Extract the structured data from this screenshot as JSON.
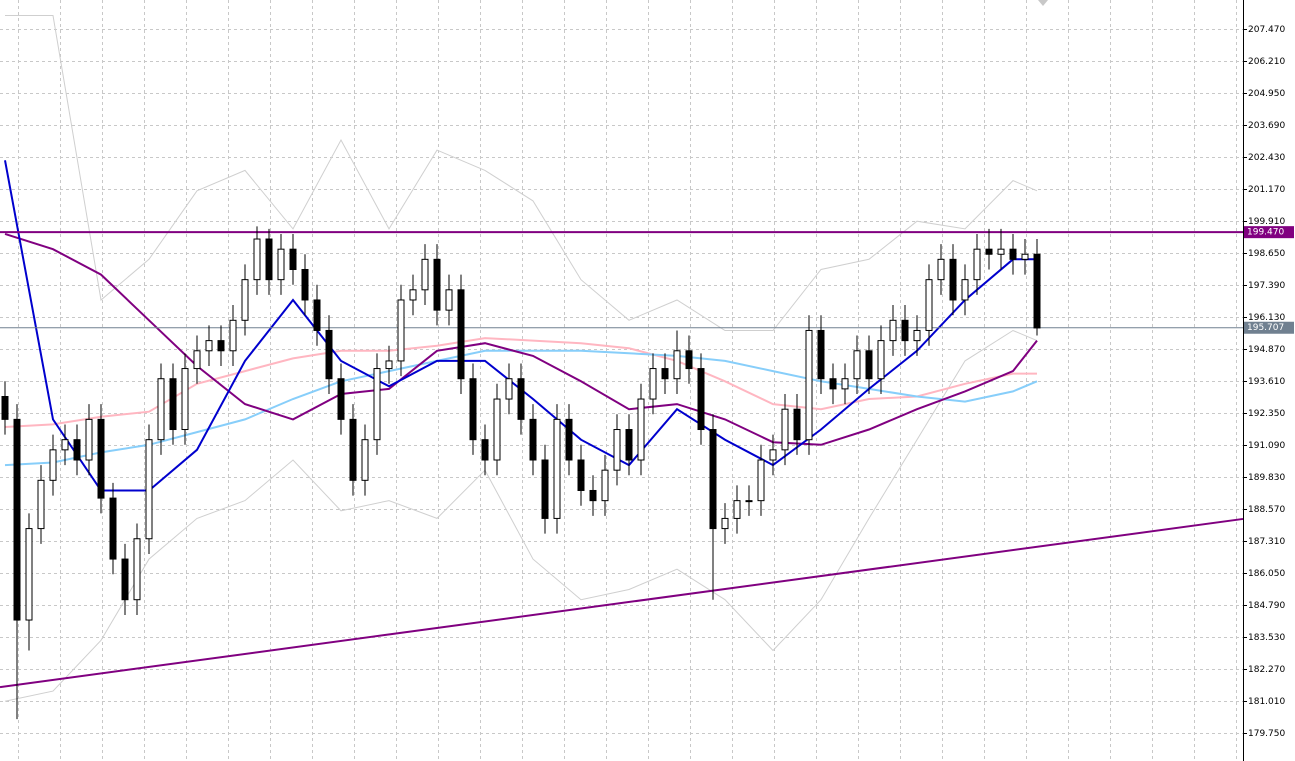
{
  "chart_data": {
    "type": "candlestick",
    "ylim": [
      178.65,
      208.61
    ],
    "yticks": [
      {
        "value": 207.47,
        "label": "207.470"
      },
      {
        "value": 206.21,
        "label": "206.210"
      },
      {
        "value": 204.95,
        "label": "204.950"
      },
      {
        "value": 203.69,
        "label": "203.690"
      },
      {
        "value": 202.43,
        "label": "202.430"
      },
      {
        "value": 201.17,
        "label": "201.170"
      },
      {
        "value": 199.91,
        "label": "199.910"
      },
      {
        "value": 198.65,
        "label": "198.650"
      },
      {
        "value": 197.39,
        "label": "197.390"
      },
      {
        "value": 196.13,
        "label": "196.130"
      },
      {
        "value": 194.87,
        "label": "194.870"
      },
      {
        "value": 193.61,
        "label": "193.610"
      },
      {
        "value": 192.35,
        "label": "192.350"
      },
      {
        "value": 191.09,
        "label": "191.090"
      },
      {
        "value": 189.83,
        "label": "189.830"
      },
      {
        "value": 188.57,
        "label": "188.570"
      },
      {
        "value": 187.31,
        "label": "187.310"
      },
      {
        "value": 186.05,
        "label": "186.050"
      },
      {
        "value": 184.79,
        "label": "184.790"
      },
      {
        "value": 183.53,
        "label": "183.530"
      },
      {
        "value": 182.27,
        "label": "182.270"
      },
      {
        "value": 181.01,
        "label": "181.010"
      },
      {
        "value": 179.75,
        "label": "179.750"
      }
    ],
    "grid": true,
    "candles": {
      "open": [
        193.0,
        192.1,
        184.2,
        187.8,
        189.7,
        190.9,
        191.3,
        190.5,
        192.1,
        189.0,
        186.6,
        185.0,
        187.4,
        191.3,
        193.7,
        191.7,
        194.1,
        194.8,
        195.2,
        194.8,
        196.0,
        197.6,
        199.2,
        197.6,
        198.8,
        198.0,
        196.8,
        195.6,
        193.7,
        192.1,
        189.7,
        191.3,
        194.1,
        194.4,
        196.8,
        197.2,
        198.4,
        196.4,
        197.2,
        193.7,
        191.3,
        190.5,
        192.9,
        193.7,
        192.1,
        190.5,
        188.2,
        192.1,
        190.5,
        189.3,
        188.9,
        190.1,
        191.7,
        190.5,
        192.9,
        194.1,
        193.7,
        194.8,
        194.1,
        191.7,
        187.8,
        188.2,
        188.9,
        188.9,
        190.5,
        190.9,
        192.5,
        191.3,
        195.6,
        193.7,
        193.3,
        193.7,
        194.8,
        193.7,
        195.2,
        196.0,
        195.2,
        195.6,
        197.6,
        198.4,
        196.8,
        197.6,
        198.8,
        198.6,
        198.8,
        198.4,
        198.6
      ],
      "high": [
        193.6,
        192.7,
        188.4,
        190.3,
        191.5,
        191.9,
        191.9,
        192.7,
        192.7,
        189.6,
        187.2,
        188.0,
        191.9,
        194.3,
        194.3,
        194.7,
        195.4,
        195.8,
        195.8,
        196.6,
        198.2,
        199.7,
        199.6,
        199.4,
        199.4,
        198.6,
        197.4,
        196.2,
        194.3,
        192.7,
        191.9,
        194.7,
        195.0,
        197.4,
        197.8,
        199.0,
        199.0,
        197.8,
        197.8,
        194.3,
        191.9,
        193.5,
        194.3,
        194.3,
        192.7,
        191.1,
        192.7,
        192.7,
        191.1,
        189.9,
        190.7,
        192.3,
        192.3,
        193.5,
        194.7,
        194.7,
        195.6,
        195.4,
        194.7,
        192.3,
        188.8,
        189.5,
        189.5,
        191.1,
        191.5,
        193.1,
        193.1,
        196.2,
        196.2,
        194.3,
        194.3,
        195.4,
        195.4,
        195.8,
        196.6,
        196.6,
        196.2,
        198.2,
        199.0,
        199.0,
        198.2,
        199.4,
        199.6,
        199.6,
        199.4,
        199.2,
        199.2
      ],
      "low": [
        191.5,
        180.3,
        183.0,
        187.2,
        189.1,
        190.3,
        189.9,
        189.9,
        188.4,
        186.0,
        184.4,
        184.4,
        186.8,
        190.7,
        191.1,
        191.1,
        193.5,
        194.2,
        194.2,
        194.2,
        195.4,
        197.0,
        197.0,
        197.0,
        197.4,
        196.2,
        195.0,
        193.1,
        191.5,
        189.1,
        189.1,
        190.7,
        193.5,
        193.8,
        196.2,
        196.6,
        195.8,
        195.8,
        193.1,
        190.7,
        189.9,
        189.9,
        192.3,
        191.5,
        189.9,
        187.6,
        187.6,
        189.9,
        188.7,
        188.3,
        188.3,
        189.5,
        189.9,
        189.9,
        192.3,
        193.1,
        193.1,
        193.5,
        191.1,
        185.0,
        187.2,
        187.6,
        188.3,
        188.3,
        189.9,
        190.3,
        190.7,
        190.7,
        193.1,
        192.7,
        192.7,
        193.1,
        193.1,
        193.1,
        194.6,
        194.6,
        194.6,
        195.0,
        197.0,
        196.2,
        196.2,
        197.0,
        198.0,
        198.0,
        197.8,
        197.8,
        195.4
      ],
      "close": [
        192.1,
        184.2,
        187.8,
        189.7,
        190.9,
        191.3,
        190.5,
        192.1,
        189.0,
        186.6,
        185.0,
        187.4,
        191.3,
        193.7,
        191.7,
        194.1,
        194.8,
        195.2,
        194.8,
        196.0,
        197.6,
        199.2,
        197.6,
        198.8,
        198.0,
        196.8,
        195.6,
        193.7,
        192.1,
        189.7,
        191.3,
        194.1,
        194.4,
        196.8,
        197.2,
        198.4,
        196.4,
        197.2,
        193.7,
        191.3,
        190.5,
        192.9,
        193.7,
        192.1,
        190.5,
        188.2,
        192.1,
        190.5,
        189.3,
        188.9,
        190.1,
        191.7,
        190.5,
        192.9,
        194.1,
        193.7,
        194.8,
        194.1,
        191.7,
        187.8,
        188.2,
        188.9,
        188.9,
        190.5,
        190.9,
        192.5,
        191.3,
        195.6,
        193.7,
        193.3,
        193.7,
        194.8,
        193.7,
        195.2,
        196.0,
        195.2,
        195.6,
        197.6,
        198.4,
        196.8,
        197.6,
        198.8,
        198.6,
        198.8,
        198.4,
        198.6,
        195.7
      ]
    },
    "overlays": {
      "x": [
        0,
        4,
        8,
        12,
        16,
        20,
        24,
        28,
        32,
        36,
        40,
        44,
        48,
        52,
        56,
        60,
        64,
        68,
        72,
        76,
        80,
        84,
        86
      ],
      "series": [
        {
          "color": "#cfcfcf",
          "values": [
            208.0,
            208.0,
            196.8,
            198.4,
            201.1,
            201.9,
            199.6,
            203.1,
            199.6,
            202.7,
            201.9,
            200.7,
            197.6,
            196.0,
            196.8,
            195.6,
            195.6,
            198.0,
            198.4,
            199.9,
            199.6,
            201.5,
            201.1
          ]
        },
        {
          "color": "#cfcfcf",
          "values": [
            181.0,
            181.4,
            183.4,
            186.6,
            188.2,
            188.9,
            190.5,
            188.5,
            188.9,
            188.2,
            190.1,
            186.6,
            185.0,
            185.4,
            186.2,
            185.0,
            183.0,
            185.0,
            188.2,
            191.3,
            194.4,
            195.6,
            195.2
          ]
        },
        {
          "color": "#ffb6c1",
          "values": [
            191.8,
            191.9,
            192.2,
            192.4,
            193.5,
            194.0,
            194.5,
            194.8,
            194.8,
            195.0,
            195.3,
            195.2,
            195.1,
            194.9,
            194.4,
            193.6,
            192.7,
            192.5,
            192.9,
            193.0,
            193.5,
            193.9,
            193.9
          ]
        },
        {
          "color": "#87cefa",
          "values": [
            190.3,
            190.4,
            190.8,
            191.1,
            191.6,
            192.1,
            192.9,
            193.6,
            194.0,
            194.4,
            194.8,
            194.8,
            194.8,
            194.7,
            194.6,
            194.4,
            194.0,
            193.6,
            193.3,
            193.0,
            192.8,
            193.2,
            193.6
          ]
        },
        {
          "color": "#800080",
          "values": [
            199.4,
            198.8,
            197.8,
            196.0,
            194.2,
            192.7,
            192.1,
            193.1,
            193.3,
            194.8,
            195.1,
            194.6,
            193.6,
            192.5,
            192.7,
            192.1,
            191.2,
            191.1,
            191.7,
            192.5,
            193.2,
            194.0,
            195.2
          ]
        },
        {
          "color": "#0000cd",
          "values": [
            202.3,
            192.1,
            189.3,
            189.3,
            190.9,
            194.4,
            196.8,
            194.4,
            193.4,
            194.4,
            194.4,
            192.9,
            191.3,
            190.3,
            192.5,
            191.3,
            190.3,
            191.7,
            193.3,
            194.8,
            196.8,
            198.4,
            198.4
          ]
        }
      ]
    },
    "hline": {
      "value": 199.47,
      "label": "199.470",
      "color": "#800080"
    },
    "trendline": {
      "start": 181.56,
      "end": 188.18,
      "color": "#800080"
    },
    "last_price": {
      "value": 195.707,
      "label": "195.707",
      "color": "#708090"
    }
  }
}
